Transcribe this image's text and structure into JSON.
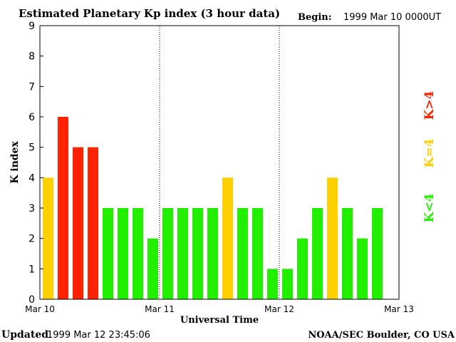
{
  "chart_data": {
    "type": "bar",
    "title": "Estimated Planetary Kp index (3 hour data)",
    "begin_label": "Begin:",
    "begin_value": "1999 Mar 10 0000UT",
    "ylabel": "K index",
    "xlabel": "Universal Time",
    "ylim": [
      0,
      9
    ],
    "yticks": [
      "0",
      "1",
      "2",
      "3",
      "4",
      "5",
      "6",
      "7",
      "8",
      "9"
    ],
    "xticks": [
      "Mar 10",
      "Mar 11",
      "Mar 12",
      "Mar 13"
    ],
    "values": [
      4,
      6,
      5,
      5,
      3,
      3,
      3,
      2,
      3,
      3,
      3,
      3,
      4,
      3,
      3,
      1,
      1,
      2,
      3,
      4,
      3,
      2,
      3
    ],
    "legend": [
      {
        "label": "K<4",
        "color": "#22ee00"
      },
      {
        "label": "K=4",
        "color": "#ffd000"
      },
      {
        "label": "K>4",
        "color": "#ff2200"
      }
    ]
  },
  "footer": {
    "updated_label": "Updated",
    "updated_value": "1999 Mar 12 23:45:06",
    "credit": "NOAA/SEC Boulder, CO USA"
  }
}
